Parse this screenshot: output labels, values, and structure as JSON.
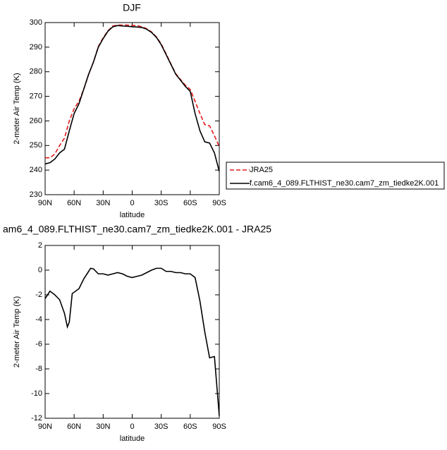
{
  "chart_data": [
    {
      "type": "line",
      "title": "DJF",
      "xlabel": "latitude",
      "ylabel": "2-meter Air Temp (K)",
      "xlim": [
        90,
        -90
      ],
      "ylim": [
        230,
        300
      ],
      "xticks": [
        {
          "value": 90,
          "label": "90N"
        },
        {
          "value": 60,
          "label": "60N"
        },
        {
          "value": 30,
          "label": "30N"
        },
        0,
        {
          "value": -30,
          "label": "30S"
        },
        {
          "value": -60,
          "label": "60S"
        },
        {
          "value": -90,
          "label": "90S"
        }
      ],
      "yticks": [
        230,
        240,
        250,
        260,
        270,
        280,
        290,
        300
      ],
      "legend": "right",
      "x": [
        90,
        85,
        80,
        75,
        70,
        65,
        60,
        55,
        50,
        45,
        40,
        35,
        30,
        25,
        20,
        15,
        10,
        5,
        0,
        -5,
        -10,
        -15,
        -20,
        -25,
        -30,
        -35,
        -40,
        -45,
        -50,
        -55,
        -60,
        -65,
        -70,
        -75,
        -80,
        -85,
        -90
      ],
      "series": [
        {
          "name": "JRA25",
          "color": "#e41a1c",
          "dash": true,
          "values": [
            245,
            245,
            246.5,
            250,
            253,
            260,
            265,
            268,
            273,
            279,
            284,
            290.3,
            293.8,
            296.7,
            298.6,
            299,
            299,
            299,
            298.8,
            298.8,
            298.3,
            297.5,
            296.2,
            294.2,
            291.3,
            287.3,
            283.2,
            279.2,
            276.8,
            274.5,
            272.8,
            268,
            263,
            258.5,
            258,
            254,
            249.5
          ]
        },
        {
          "name": "f.cam6_4_089.FLTHIST_ne30.cam7_zm_tiedke2K.001",
          "color": "#000000",
          "dash": false,
          "values": [
            242.5,
            243,
            244.5,
            247,
            248.5,
            256,
            263,
            267,
            273,
            279,
            284,
            290,
            293.5,
            296.5,
            298.3,
            298.8,
            298.6,
            298.5,
            298.3,
            298.2,
            298,
            297.3,
            296,
            294,
            291,
            287,
            283,
            279,
            276.5,
            274,
            272,
            263,
            256,
            251.5,
            251,
            247,
            239.5
          ]
        }
      ]
    },
    {
      "type": "line",
      "title": "am6_4_089.FLTHIST_ne30.cam7_zm_tiedke2K.001 - JRA25",
      "xlabel": "latitude",
      "ylabel": "2-meter Air Temp (K)",
      "xlim": [
        90,
        -90
      ],
      "ylim": [
        -12,
        2
      ],
      "xticks": [
        {
          "value": 90,
          "label": "90N"
        },
        {
          "value": 60,
          "label": "60N"
        },
        {
          "value": 30,
          "label": "30N"
        },
        0,
        {
          "value": -30,
          "label": "30S"
        },
        {
          "value": -60,
          "label": "60S"
        },
        {
          "value": -90,
          "label": "90S"
        }
      ],
      "yticks": [
        -12,
        -10,
        -8,
        -6,
        -4,
        -2,
        0,
        2
      ],
      "x": [
        90,
        85,
        80,
        75,
        70,
        67,
        65,
        62,
        55,
        50,
        45,
        43,
        40,
        35,
        30,
        25,
        20,
        15,
        10,
        5,
        0,
        -5,
        -10,
        -15,
        -20,
        -25,
        -30,
        -35,
        -40,
        -45,
        -50,
        -55,
        -60,
        -65,
        -70,
        -75,
        -80,
        -85,
        -90
      ],
      "series": [
        {
          "color": "#000000",
          "dash": false,
          "values": [
            -2.3,
            -1.7,
            -2.0,
            -2.4,
            -3.5,
            -4.6,
            -4.2,
            -1.9,
            -1.5,
            -0.7,
            -0.1,
            0.15,
            0.1,
            -0.3,
            -0.3,
            -0.4,
            -0.3,
            -0.2,
            -0.3,
            -0.5,
            -0.6,
            -0.5,
            -0.4,
            -0.2,
            0.0,
            0.15,
            0.15,
            -0.1,
            -0.1,
            -0.2,
            -0.2,
            -0.3,
            -0.3,
            -0.6,
            -2.5,
            -5,
            -7.1,
            -7.0,
            -11.8
          ]
        }
      ]
    }
  ]
}
